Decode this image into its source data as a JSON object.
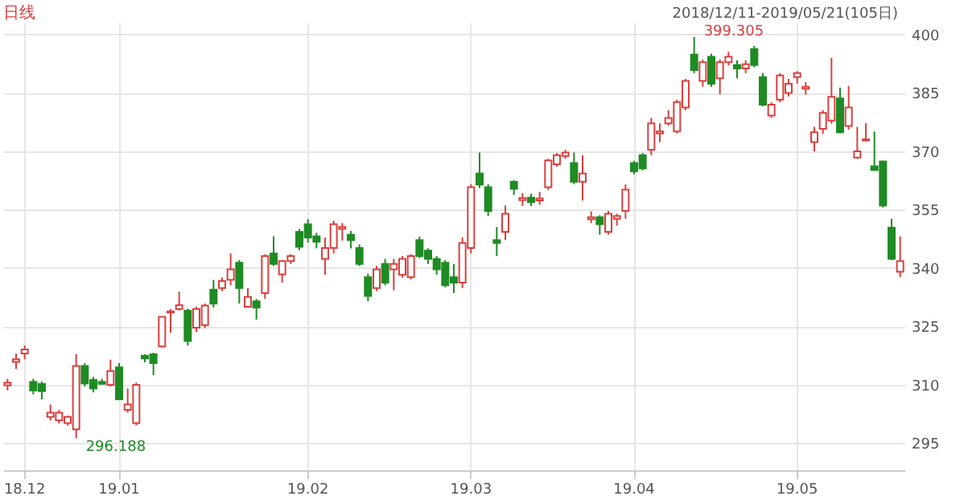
{
  "chart_data": {
    "type": "candlestick",
    "title": "日线",
    "annotations": [
      "2018/12/11-2019/05/21(105日)",
      "399.305",
      "296.188"
    ],
    "categories": [
      null,
      null,
      "18.12",
      null,
      null,
      null,
      null,
      null,
      null,
      null,
      null,
      null,
      null,
      "19.01",
      null,
      null,
      null,
      null,
      null,
      null,
      null,
      null,
      null,
      null,
      null,
      null,
      null,
      null,
      null,
      null,
      null,
      null,
      null,
      null,
      null,
      "19.02",
      null,
      null,
      null,
      null,
      null,
      null,
      null,
      null,
      null,
      null,
      null,
      null,
      null,
      null,
      null,
      null,
      null,
      null,
      "19.03",
      null,
      null,
      null,
      null,
      null,
      null,
      null,
      null,
      null,
      null,
      null,
      null,
      null,
      null,
      null,
      null,
      null,
      null,
      "19.04",
      null,
      null,
      null,
      null,
      null,
      null,
      null,
      null,
      null,
      null,
      null,
      null,
      null,
      null,
      null,
      null,
      null,
      null,
      "19.05",
      null,
      null,
      null,
      null,
      null,
      null,
      null,
      null,
      null,
      null,
      null,
      null
    ],
    "ohlc": [
      [
        309.8,
        311.5,
        308.5,
        310.5
      ],
      [
        315.8,
        318,
        314,
        316.5
      ],
      [
        318,
        320,
        316.5,
        319
      ],
      [
        310.7,
        311.5,
        307.5,
        308.5
      ],
      [
        310.2,
        310.8,
        306.2,
        308.3
      ],
      [
        301.7,
        304.9,
        300.8,
        302.8
      ],
      [
        300.8,
        303.5,
        300,
        302.8
      ],
      [
        300.1,
        302,
        299.5,
        301.7
      ],
      [
        298.5,
        317.8,
        296.188,
        314.8
      ],
      [
        314.8,
        315.5,
        309.5,
        310.3
      ],
      [
        311.2,
        312,
        308,
        309
      ],
      [
        310.7,
        311.5,
        310,
        310.2
      ],
      [
        309.9,
        316.4,
        309.5,
        313.5
      ],
      [
        314.4,
        315.5,
        306,
        306.2
      ],
      [
        303.5,
        309,
        302.8,
        304.9
      ],
      [
        300.1,
        310.5,
        299.5,
        309.9
      ],
      [
        317.4,
        317.8,
        315.7,
        316.7
      ],
      [
        317.8,
        318.2,
        312.4,
        315.5
      ],
      [
        319.8,
        327.4,
        319.5,
        327.4
      ],
      [
        328.5,
        329.4,
        323.3,
        328.8
      ],
      [
        329.4,
        333.9,
        329,
        330.4
      ],
      [
        329,
        329.5,
        320,
        321.2
      ],
      [
        324.6,
        330,
        323.5,
        329.4
      ],
      [
        325.3,
        330.8,
        324.5,
        330.3
      ],
      [
        334.4,
        336.9,
        329.8,
        330.8
      ],
      [
        334.8,
        337.5,
        334,
        336.6
      ],
      [
        336.9,
        343.7,
        335.5,
        339.6
      ],
      [
        341.3,
        342,
        330.8,
        334.8
      ],
      [
        330,
        334.8,
        329.8,
        332.5
      ],
      [
        331.4,
        332,
        326.7,
        329.8
      ],
      [
        333.5,
        343.5,
        332,
        343
      ],
      [
        343.7,
        348.1,
        340.5,
        341
      ],
      [
        338.3,
        342,
        336.2,
        341.7
      ],
      [
        341.7,
        343.5,
        341,
        343
      ],
      [
        349.2,
        350,
        344.5,
        345.4
      ],
      [
        351.2,
        352.5,
        346.5,
        347.8
      ],
      [
        348.1,
        349,
        345,
        346.7
      ],
      [
        342.3,
        347.8,
        338.2,
        345.1
      ],
      [
        345.1,
        352.1,
        343.7,
        351.2
      ],
      [
        350,
        351.5,
        347,
        350.5
      ],
      [
        348.5,
        349.5,
        345,
        347.1
      ],
      [
        345.1,
        346,
        340.5,
        341
      ],
      [
        337.6,
        338.5,
        331.4,
        332.8
      ],
      [
        334.8,
        340.5,
        334,
        339.6
      ],
      [
        341,
        342.3,
        335.5,
        336.2
      ],
      [
        339.6,
        342.3,
        334.2,
        341
      ],
      [
        338.2,
        343,
        337.5,
        342.3
      ],
      [
        337.6,
        343.5,
        337,
        343
      ],
      [
        347.1,
        348,
        342.5,
        343
      ],
      [
        344.4,
        345,
        341,
        342.3
      ],
      [
        342.3,
        343,
        338.2,
        339.6
      ],
      [
        341.3,
        342,
        335,
        335.5
      ],
      [
        337.6,
        341,
        333.5,
        336.2
      ],
      [
        336.2,
        347.8,
        334.8,
        346.4
      ],
      [
        345.1,
        361.5,
        343.7,
        360.7
      ],
      [
        364.2,
        369.6,
        360.5,
        361.4
      ],
      [
        360.7,
        361.5,
        353.3,
        354.6
      ],
      [
        347.1,
        350.5,
        343,
        346.4
      ],
      [
        349.2,
        356,
        347.1,
        353.9
      ],
      [
        362.1,
        362.5,
        358.7,
        360.3
      ],
      [
        357.4,
        359.2,
        355.9,
        357.9
      ],
      [
        358,
        359,
        355.9,
        356.9
      ],
      [
        357.3,
        359.5,
        356.2,
        357.8
      ],
      [
        360.7,
        368,
        360,
        367.6
      ],
      [
        366.6,
        369.5,
        366,
        368.9
      ],
      [
        368.7,
        370.3,
        368,
        369.6
      ],
      [
        366.9,
        369.6,
        361.5,
        362.1
      ],
      [
        362.1,
        368.9,
        357.3,
        364.2
      ],
      [
        352.5,
        354.5,
        351.5,
        353
      ],
      [
        353,
        353.5,
        348.5,
        351.2
      ],
      [
        349.2,
        354.6,
        348.5,
        353.9
      ],
      [
        352.6,
        353.9,
        350.8,
        353.3
      ],
      [
        354.6,
        361.4,
        352.6,
        360.1
      ],
      [
        366.9,
        367.5,
        364,
        364.8
      ],
      [
        368.9,
        369.5,
        365,
        365.5
      ],
      [
        370.3,
        378.5,
        368.9,
        377.1
      ],
      [
        374.5,
        377.1,
        372.3,
        375
      ],
      [
        377.1,
        380.5,
        376.5,
        378.5
      ],
      [
        375,
        383.2,
        374.5,
        382.6
      ],
      [
        381.2,
        388.5,
        380.5,
        388
      ],
      [
        394.8,
        399.305,
        390,
        390.8
      ],
      [
        388,
        393.5,
        386.5,
        392.8
      ],
      [
        394.2,
        395,
        386.5,
        387.3
      ],
      [
        388.7,
        393.5,
        384.6,
        392.8
      ],
      [
        392.8,
        395.5,
        392,
        394.2
      ],
      [
        392.1,
        393.3,
        388.7,
        391.2
      ],
      [
        391.2,
        393.3,
        390,
        392.3
      ],
      [
        396.2,
        397,
        391.5,
        392.1
      ],
      [
        389,
        390,
        381.5,
        381.9
      ],
      [
        379.1,
        382.5,
        378.5,
        381.9
      ],
      [
        383.2,
        390,
        382.5,
        389.4
      ],
      [
        384.9,
        388.5,
        384,
        387.3
      ],
      [
        389,
        390.5,
        387.3,
        390
      ],
      [
        386,
        387.7,
        384.5,
        386.5
      ],
      [
        372.3,
        376.2,
        369.9,
        374.8
      ],
      [
        375.7,
        380.5,
        374.4,
        379.8
      ],
      [
        377.8,
        393.9,
        377,
        383.9
      ],
      [
        383.5,
        386.3,
        374.5,
        374.8
      ],
      [
        376.4,
        386.7,
        375.5,
        381.2
      ],
      [
        368.3,
        376.2,
        368,
        369.9
      ],
      [
        372.7,
        377.1,
        372.5,
        373
      ],
      [
        366.1,
        375,
        365,
        365.1
      ],
      [
        367.3,
        367.5,
        355.5,
        356
      ],
      [
        350.3,
        352.6,
        342,
        342.3
      ],
      [
        339,
        348.1,
        337.6,
        341.7
      ]
    ],
    "colors": [
      "#d9413f",
      "#d9413f",
      "#d9413f",
      "#1f8b24",
      "#1f8b24",
      "#d9413f",
      "#d9413f",
      "#d9413f",
      "#d9413f",
      "#1f8b24",
      "#1f8b24",
      "#1f8b24",
      "#d9413f",
      "#1f8b24",
      "#d9413f",
      "#d9413f",
      "#1f8b24",
      "#1f8b24",
      "#d9413f",
      "#d9413f",
      "#d9413f",
      "#1f8b24",
      "#d9413f",
      "#d9413f",
      "#1f8b24",
      "#d9413f",
      "#d9413f",
      "#1f8b24",
      "#d9413f",
      "#1f8b24",
      "#d9413f",
      "#1f8b24",
      "#d9413f",
      "#d9413f",
      "#1f8b24",
      "#1f8b24",
      "#1f8b24",
      "#d9413f",
      "#d9413f",
      "#d9413f",
      "#1f8b24",
      "#1f8b24",
      "#1f8b24",
      "#d9413f",
      "#1f8b24",
      "#d9413f",
      "#d9413f",
      "#d9413f",
      "#1f8b24",
      "#1f8b24",
      "#1f8b24",
      "#1f8b24",
      "#1f8b24",
      "#d9413f",
      "#d9413f",
      "#1f8b24",
      "#1f8b24",
      "#1f8b24",
      "#d9413f",
      "#1f8b24",
      "#d9413f",
      "#1f8b24",
      "#d9413f",
      "#d9413f",
      "#d9413f",
      "#d9413f",
      "#1f8b24",
      "#d9413f",
      "#d9413f",
      "#1f8b24",
      "#d9413f",
      "#d9413f",
      "#d9413f",
      "#1f8b24",
      "#1f8b24",
      "#d9413f",
      "#d9413f",
      "#d9413f",
      "#d9413f",
      "#d9413f",
      "#1f8b24",
      "#d9413f",
      "#1f8b24",
      "#d9413f",
      "#d9413f",
      "#1f8b24",
      "#d9413f",
      "#1f8b24",
      "#1f8b24",
      "#d9413f",
      "#d9413f",
      "#d9413f",
      "#d9413f",
      "#d9413f",
      "#d9413f",
      "#d9413f",
      "#d9413f",
      "#1f8b24",
      "#d9413f",
      "#d9413f",
      "#d9413f",
      "#1f8b24",
      "#1f8b24",
      "#1f8b24",
      "#d9413f"
    ],
    "ylim": [
      288,
      403
    ],
    "yticks": [
      295,
      310,
      325,
      340,
      355,
      370,
      385,
      400
    ],
    "grid": true
  }
}
